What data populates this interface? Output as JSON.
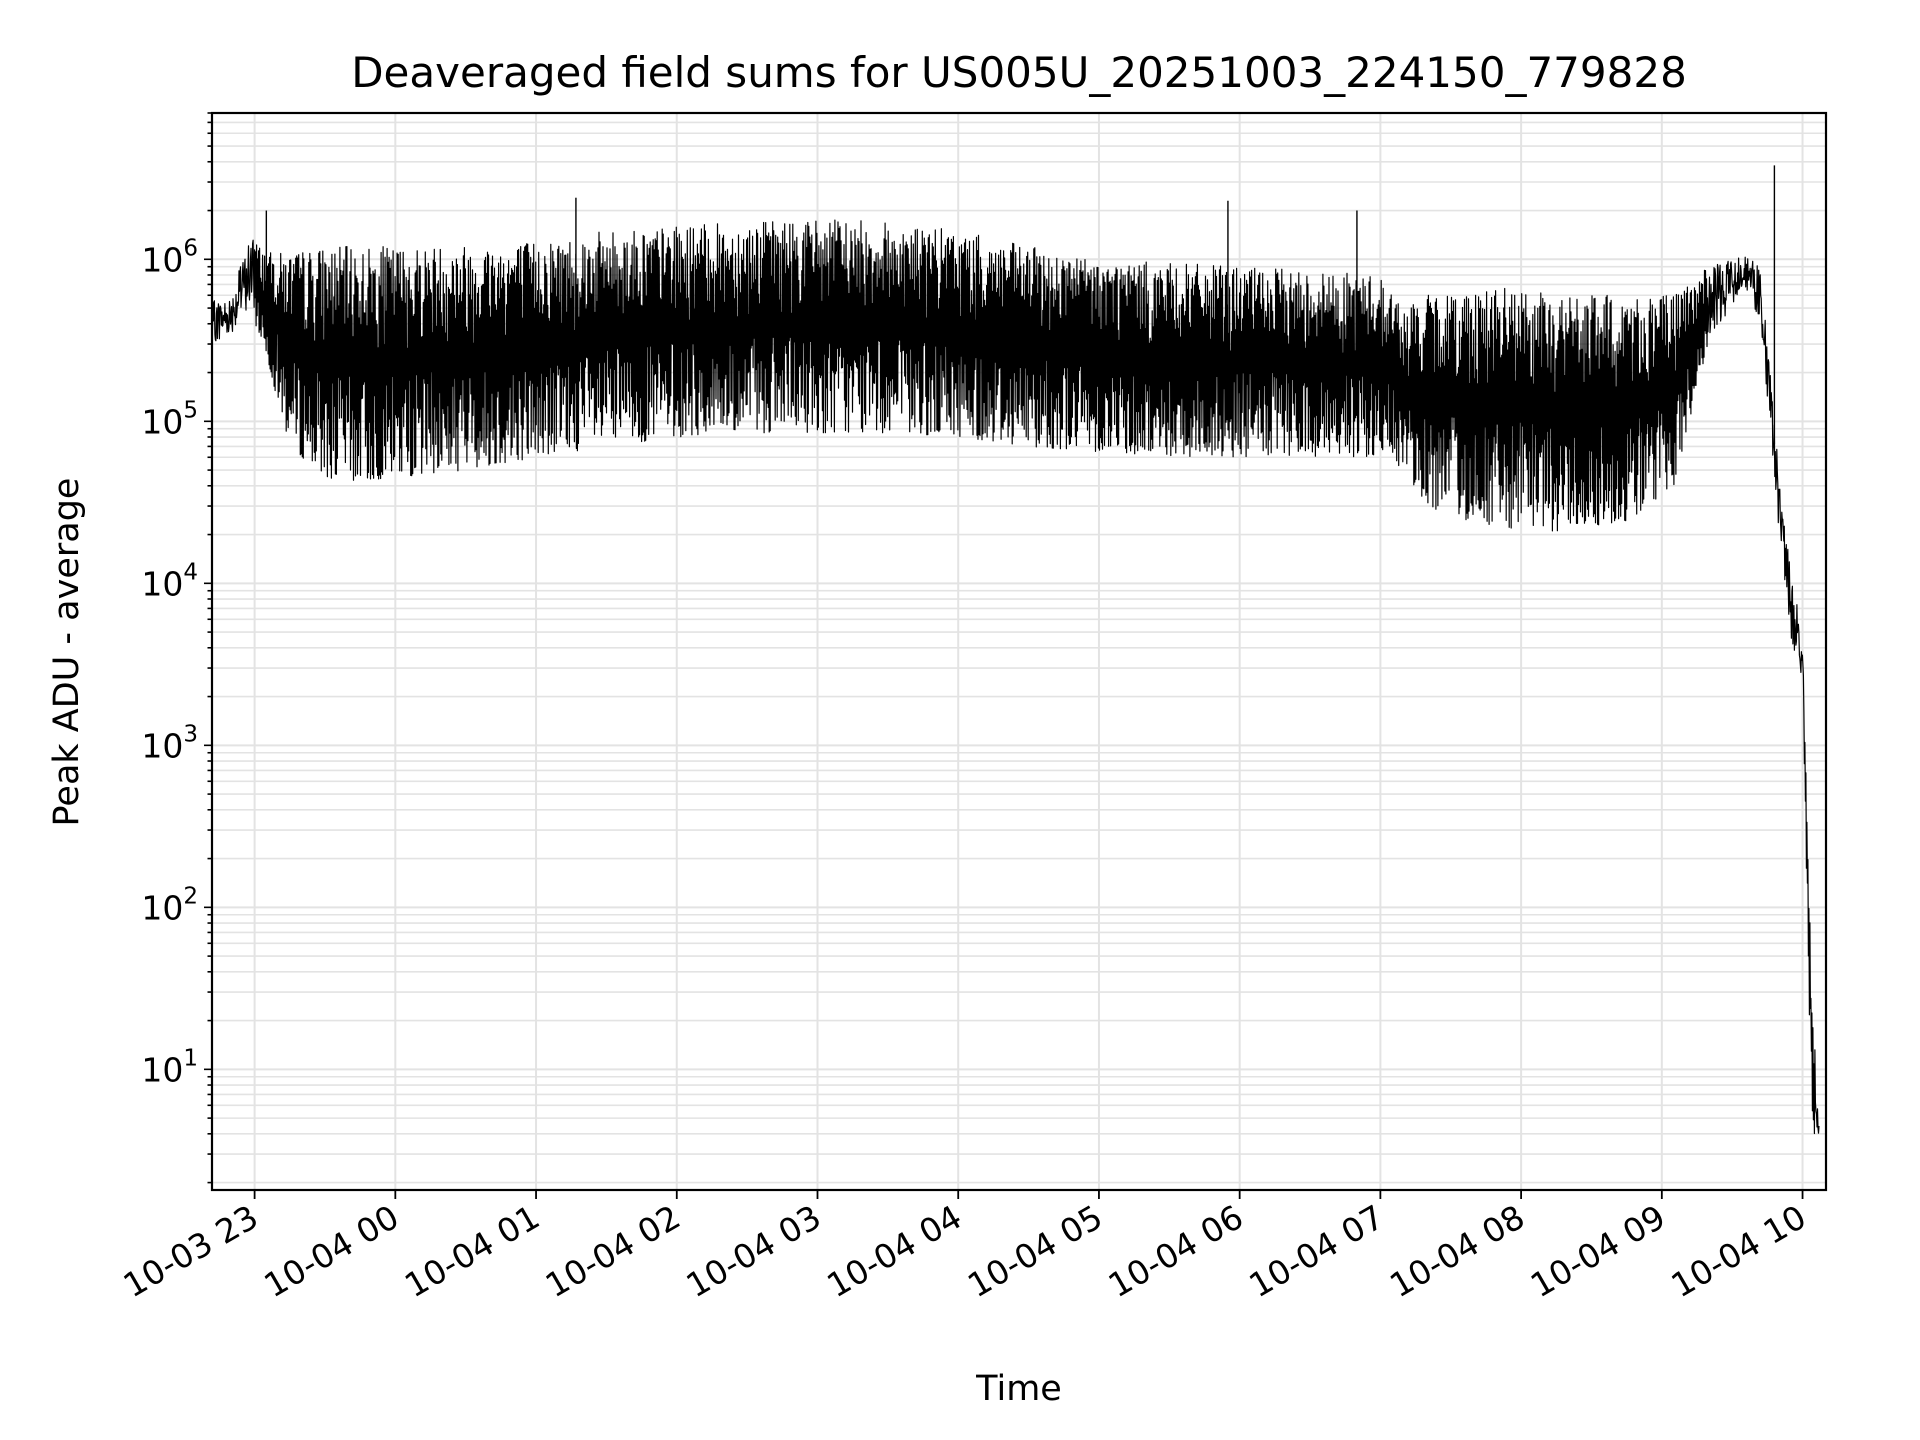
{
  "chart_data": {
    "type": "line",
    "title": "Deaveraged field sums for US005U_20251003_224150_779828",
    "xlabel": "Time",
    "ylabel": "Peak ADU - average",
    "yscale": "log",
    "grid": true,
    "ylim": [
      1.8,
      8000000
    ],
    "xlim": [
      "2025-10-03 22:41:50",
      "2025-10-04 10:10:00"
    ],
    "x_ticks": [
      {
        "value": "2025-10-03 23:00",
        "label": "10-03 23"
      },
      {
        "value": "2025-10-04 00:00",
        "label": "10-04 00"
      },
      {
        "value": "2025-10-04 01:00",
        "label": "10-04 01"
      },
      {
        "value": "2025-10-04 02:00",
        "label": "10-04 02"
      },
      {
        "value": "2025-10-04 03:00",
        "label": "10-04 03"
      },
      {
        "value": "2025-10-04 04:00",
        "label": "10-04 04"
      },
      {
        "value": "2025-10-04 05:00",
        "label": "10-04 05"
      },
      {
        "value": "2025-10-04 06:00",
        "label": "10-04 06"
      },
      {
        "value": "2025-10-04 07:00",
        "label": "10-04 07"
      },
      {
        "value": "2025-10-04 08:00",
        "label": "10-04 08"
      },
      {
        "value": "2025-10-04 09:00",
        "label": "10-04 09"
      },
      {
        "value": "2025-10-04 10:00",
        "label": "10-04 10"
      }
    ],
    "y_ticks": [
      {
        "value": 10,
        "base": "10",
        "exp": "1"
      },
      {
        "value": 100,
        "base": "10",
        "exp": "2"
      },
      {
        "value": 1000,
        "base": "10",
        "exp": "3"
      },
      {
        "value": 10000,
        "base": "10",
        "exp": "4"
      },
      {
        "value": 100000,
        "base": "10",
        "exp": "5"
      },
      {
        "value": 1000000,
        "base": "10",
        "exp": "6"
      }
    ],
    "series": [
      {
        "color": "#000000",
        "envelope": [
          {
            "x": "2025-10-03 22:42",
            "low": 300000,
            "high": 550000
          },
          {
            "x": "2025-10-03 22:50",
            "low": 350000,
            "high": 600000
          },
          {
            "x": "2025-10-03 22:58",
            "low": 500000,
            "high": 1400000
          },
          {
            "x": "2025-10-03 23:05",
            "low": 250000,
            "high": 1100000
          },
          {
            "x": "2025-10-03 23:15",
            "low": 70000,
            "high": 1100000
          },
          {
            "x": "2025-10-03 23:30",
            "low": 45000,
            "high": 1200000
          },
          {
            "x": "2025-10-03 23:45",
            "low": 42000,
            "high": 1200000
          },
          {
            "x": "2025-10-04 00:00",
            "low": 45000,
            "high": 1200000
          },
          {
            "x": "2025-10-04 00:30",
            "low": 50000,
            "high": 1250000
          },
          {
            "x": "2025-10-04 01:00",
            "low": 60000,
            "high": 1300000
          },
          {
            "x": "2025-10-04 01:30",
            "low": 70000,
            "high": 1500000
          },
          {
            "x": "2025-10-04 02:00",
            "low": 80000,
            "high": 1600000
          },
          {
            "x": "2025-10-04 02:30",
            "low": 85000,
            "high": 1700000
          },
          {
            "x": "2025-10-04 03:00",
            "low": 85000,
            "high": 1800000
          },
          {
            "x": "2025-10-04 03:30",
            "low": 85000,
            "high": 1700000
          },
          {
            "x": "2025-10-04 04:00",
            "low": 80000,
            "high": 1500000
          },
          {
            "x": "2025-10-04 04:30",
            "low": 70000,
            "high": 1200000
          },
          {
            "x": "2025-10-04 05:00",
            "low": 65000,
            "high": 1000000
          },
          {
            "x": "2025-10-04 05:30",
            "low": 60000,
            "high": 950000
          },
          {
            "x": "2025-10-04 06:00",
            "low": 60000,
            "high": 900000
          },
          {
            "x": "2025-10-04 06:30",
            "low": 60000,
            "high": 850000
          },
          {
            "x": "2025-10-04 07:00",
            "low": 60000,
            "high": 800000
          },
          {
            "x": "2025-10-04 07:10",
            "low": 50000,
            "high": 500000
          },
          {
            "x": "2025-10-04 07:20",
            "low": 30000,
            "high": 600000
          },
          {
            "x": "2025-10-04 07:45",
            "low": 22000,
            "high": 700000
          },
          {
            "x": "2025-10-04 08:15",
            "low": 21000,
            "high": 600000
          },
          {
            "x": "2025-10-04 08:45",
            "low": 24000,
            "high": 600000
          },
          {
            "x": "2025-10-04 09:05",
            "low": 40000,
            "high": 600000
          },
          {
            "x": "2025-10-04 09:20",
            "low": 300000,
            "high": 900000
          },
          {
            "x": "2025-10-04 09:35",
            "low": 700000,
            "high": 1100000
          },
          {
            "x": "2025-10-04 09:42",
            "low": 400000,
            "high": 900000
          },
          {
            "x": "2025-10-04 09:50",
            "low": 20000,
            "high": 50000
          },
          {
            "x": "2025-10-04 09:55",
            "low": 4500,
            "high": 12000
          },
          {
            "x": "2025-10-04 10:00",
            "low": 2500,
            "high": 5000
          },
          {
            "x": "2025-10-04 10:04",
            "low": 3.8,
            "high": 30
          },
          {
            "x": "2025-10-04 10:07",
            "low": 3.8,
            "high": 4.5
          }
        ],
        "spikes": [
          {
            "x": "2025-10-03 23:05",
            "value": 2000000
          },
          {
            "x": "2025-10-04 01:17",
            "value": 2400000
          },
          {
            "x": "2025-10-04 05:55",
            "value": 2300000
          },
          {
            "x": "2025-10-04 06:50",
            "value": 2000000
          },
          {
            "x": "2025-10-04 09:48",
            "value": 3800000
          }
        ]
      }
    ]
  }
}
